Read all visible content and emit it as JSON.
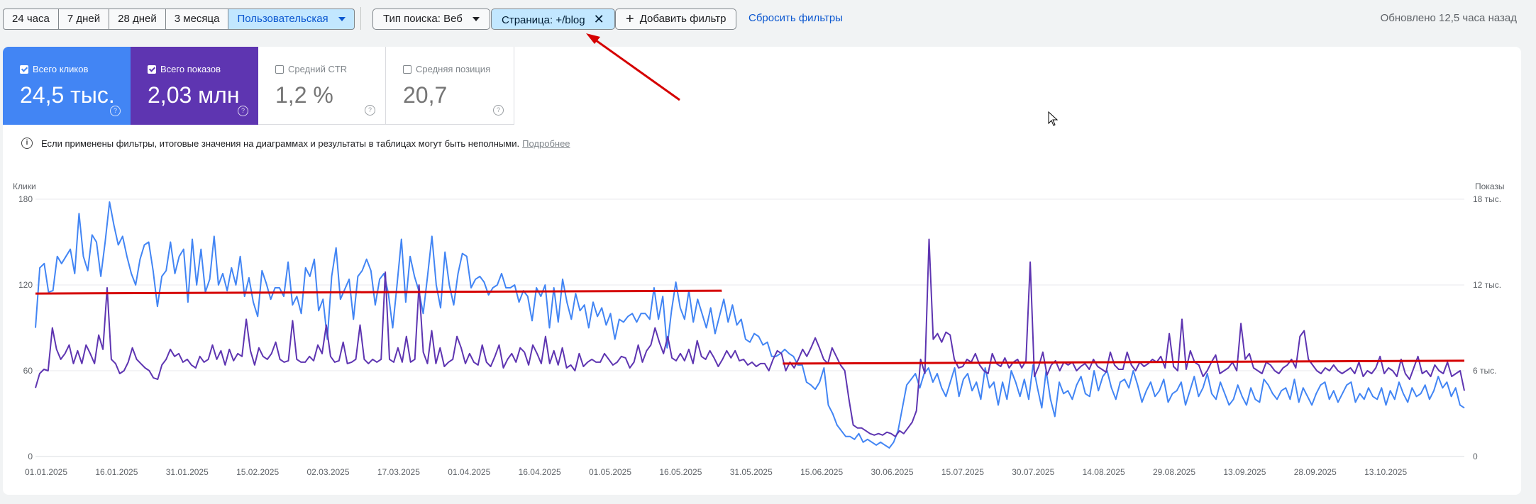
{
  "filters": {
    "ranges": [
      "24 часа",
      "7 дней",
      "28 дней",
      "3 месяца",
      "Пользовательская"
    ],
    "search_type": "Тип поиска: Веб",
    "page_filter": "Страница: +/blog",
    "add_filter": "Добавить фильтр",
    "reset": "Сбросить фильтры",
    "updated": "Обновлено 12,5 часа назад"
  },
  "metrics": [
    {
      "label": "Всего кликов",
      "value": "24,5 тыс.",
      "checked": true
    },
    {
      "label": "Всего показов",
      "value": "2,03 млн",
      "checked": true
    },
    {
      "label": "Средний CTR",
      "value": "1,2 %",
      "checked": false
    },
    {
      "label": "Средняя позиция",
      "value": "20,7",
      "checked": false
    }
  ],
  "notice": {
    "text": "Если применены фильтры, итоговые значения на диаграммах и результаты в таблицах могут быть неполными.",
    "link": "Подробнее"
  },
  "icons": {
    "info": "info-icon",
    "help": "help-icon",
    "close": "close-icon",
    "add": "plus-icon",
    "dropdown": "chevron-down-icon",
    "cursor": "mouse-cursor-icon"
  },
  "colors": {
    "clicks": "#4285f4",
    "impressions": "#5e35b1",
    "annotation": "#d50000"
  },
  "chart_data": {
    "type": "line",
    "y_left_label": "Клики",
    "y_right_label": "Показы",
    "y_left_ticks": [
      "0",
      "60",
      "120",
      "180"
    ],
    "y_right_ticks": [
      "0",
      "6 тыс.",
      "12 тыс.",
      "18 тыс."
    ],
    "ylim_left": [
      0,
      180
    ],
    "ylim_right": [
      0,
      18000
    ],
    "x_ticks": [
      "01.01.2025",
      "16.01.2025",
      "31.01.2025",
      "15.02.2025",
      "02.03.2025",
      "17.03.2025",
      "01.04.2025",
      "16.04.2025",
      "01.05.2025",
      "16.05.2025",
      "31.05.2025",
      "15.06.2025",
      "30.06.2025",
      "15.07.2025",
      "30.07.2025",
      "14.08.2025",
      "29.08.2025",
      "13.09.2025",
      "28.09.2025",
      "13.10.2025"
    ],
    "x_range": [
      "2025-01-01",
      "2025-11-01"
    ],
    "series": [
      {
        "name": "Всего кликов",
        "axis": "left",
        "values": [
          90,
          132,
          135,
          115,
          116,
          140,
          135,
          140,
          145,
          128,
          170,
          140,
          130,
          155,
          150,
          126,
          150,
          178,
          162,
          148,
          154,
          140,
          128,
          120,
          138,
          148,
          150,
          130,
          105,
          126,
          130,
          150,
          128,
          140,
          145,
          108,
          152,
          120,
          145,
          115,
          124,
          154,
          120,
          128,
          116,
          132,
          120,
          140,
          112,
          125,
          108,
          98,
          130,
          121,
          110,
          118,
          118,
          112,
          136,
          106,
          112,
          100,
          132,
          126,
          138,
          102,
          110,
          82,
          126,
          146,
          110,
          117,
          124,
          96,
          126,
          130,
          138,
          130,
          106,
          124,
          128,
          114,
          90,
          120,
          152,
          108,
          140,
          126,
          116,
          100,
          126,
          154,
          120,
          104,
          143,
          120,
          106,
          128,
          142,
          140,
          118,
          124,
          126,
          122,
          113,
          118,
          120,
          128,
          118,
          118,
          120,
          108,
          116,
          112,
          95,
          118,
          112,
          120,
          90,
          118,
          94,
          124,
          108,
          96,
          114,
          102,
          106,
          90,
          108,
          98,
          104,
          92,
          100,
          82,
          96,
          94,
          98,
          100,
          94,
          100,
          100,
          96,
          118,
          96,
          112,
          76,
          102,
          122,
          104,
          96,
          116,
          94,
          110,
          100,
          90,
          104,
          86,
          98,
          110,
          94,
          106,
          92,
          96,
          82,
          80,
          86,
          84,
          78,
          80,
          70,
          70,
          72,
          75,
          72,
          70,
          64,
          64,
          52,
          50,
          47,
          52,
          62,
          36,
          30,
          22,
          18,
          14,
          14,
          12,
          16,
          10,
          12,
          10,
          8,
          10,
          8,
          6,
          10,
          18,
          34,
          50,
          54,
          58,
          48,
          58,
          62,
          52,
          58,
          48,
          42,
          52,
          62,
          42,
          54,
          58,
          46,
          52,
          40,
          62,
          48,
          52,
          36,
          52,
          40,
          60,
          52,
          42,
          54,
          40,
          64,
          48,
          34,
          60,
          40,
          28,
          52,
          44,
          46,
          40,
          50,
          56,
          44,
          42,
          60,
          46,
          56,
          60,
          48,
          40,
          52,
          54,
          48,
          60,
          50,
          38,
          46,
          52,
          42,
          46,
          54,
          38,
          44,
          46,
          52,
          36,
          46,
          56,
          42,
          48,
          58,
          44,
          40,
          52,
          44,
          36,
          40,
          50,
          42,
          36,
          48,
          40,
          38,
          54,
          50,
          44,
          40,
          46,
          48,
          40,
          54,
          38,
          48,
          42,
          36,
          44,
          50,
          52,
          40,
          46,
          38,
          44,
          50,
          52,
          38,
          44,
          40,
          48,
          42,
          40,
          48,
          36,
          46,
          40,
          52,
          44,
          38,
          48,
          42,
          44,
          50,
          40,
          46,
          56,
          48,
          52,
          42,
          48,
          36,
          34
        ]
      },
      {
        "name": "Всего показов",
        "axis": "right",
        "values": [
          4800,
          5800,
          6100,
          6000,
          9000,
          7500,
          6800,
          7200,
          7800,
          6500,
          7400,
          6500,
          7800,
          7200,
          6500,
          8500,
          7500,
          11800,
          6800,
          6500,
          5800,
          6000,
          6600,
          7600,
          6800,
          6500,
          6200,
          6000,
          5500,
          5400,
          6400,
          6800,
          7500,
          7000,
          7200,
          6600,
          6800,
          6400,
          6200,
          7000,
          6600,
          6800,
          7800,
          6800,
          7400,
          6400,
          7500,
          6700,
          7200,
          7000,
          9600,
          7400,
          6400,
          7600,
          7000,
          6800,
          7200,
          8000,
          6800,
          6600,
          6700,
          9500,
          6800,
          6600,
          6600,
          7000,
          6700,
          7800,
          7200,
          9200,
          7000,
          6600,
          6700,
          8000,
          6500,
          6600,
          6800,
          9200,
          6800,
          6500,
          6800,
          6600,
          6800,
          12900,
          6800,
          6600,
          7600,
          6600,
          8400,
          6600,
          6800,
          12000,
          7300,
          6500,
          8800,
          6500,
          7600,
          6300,
          6600,
          6800,
          8400,
          7600,
          6500,
          7200,
          6600,
          6400,
          7800,
          6600,
          6300,
          7000,
          7800,
          6200,
          6800,
          7200,
          6600,
          7600,
          7300,
          6400,
          7800,
          7200,
          6500,
          8400,
          6500,
          7400,
          6400,
          7600,
          6200,
          6400,
          6000,
          7200,
          6300,
          6600,
          6800,
          6600,
          6600,
          7200,
          6800,
          6400,
          6600,
          7000,
          6900,
          6200,
          6600,
          7800,
          6600,
          7400,
          7800,
          9000,
          8000,
          7200,
          8400,
          6900,
          6700,
          7200,
          6700,
          7500,
          6500,
          8100,
          7000,
          6800,
          7400,
          6900,
          6300,
          6800,
          7400,
          6900,
          7400,
          6700,
          6800,
          6400,
          6600,
          6300,
          6500,
          6500,
          6000,
          6800,
          7400,
          7200,
          6000,
          6600,
          6200,
          6800,
          7500,
          7000,
          7600,
          8300,
          7600,
          6800,
          6500,
          7600,
          7000,
          6400,
          6000,
          4000,
          2200,
          2000,
          2000,
          1800,
          1600,
          1500,
          1600,
          1500,
          1700,
          1600,
          1400,
          1800,
          1600,
          2000,
          2400,
          3200,
          6800,
          5800,
          15200,
          8200,
          8600,
          8000,
          8700,
          8500,
          6800,
          6200,
          6300,
          6800,
          6600,
          7200,
          6400,
          6000,
          5800,
          7200,
          6500,
          6300,
          6900,
          6200,
          6600,
          6800,
          6200,
          6700,
          13600,
          5600,
          6300,
          7300,
          5700,
          6400,
          6700,
          6000,
          6600,
          6400,
          6600,
          6000,
          6300,
          6500,
          6100,
          6800,
          6300,
          6100,
          5900,
          7300,
          6400,
          6100,
          6100,
          7300,
          6400,
          6000,
          6600,
          6300,
          6500,
          6800,
          6600,
          7000,
          6200,
          8600,
          6300,
          6000,
          9600,
          6100,
          7400,
          6600,
          6400,
          5600,
          6000,
          6600,
          7100,
          5800,
          6000,
          6200,
          6600,
          6000,
          9300,
          6800,
          7200,
          6200,
          6000,
          5800,
          6600,
          6400,
          6000,
          5800,
          6200,
          6400,
          6800,
          6200,
          8400,
          8800,
          6800,
          6400,
          6000,
          5800,
          6200,
          6000,
          6400,
          6000,
          5800,
          6000,
          6200,
          5800,
          6600,
          5600,
          6000,
          5800,
          6200,
          7000,
          5800,
          6200,
          6000,
          5600,
          6800,
          5800,
          5400,
          6200,
          7000,
          5800,
          6000,
          5600,
          6400,
          6000,
          5800,
          6600,
          5600,
          5800,
          6000,
          4600
        ]
      }
    ],
    "annotations": [
      {
        "type": "trend-line",
        "axis": "left",
        "from": [
          "2025-01-01",
          114
        ],
        "to": [
          "2025-05-27",
          116
        ]
      },
      {
        "type": "trend-line",
        "axis": "left",
        "from": [
          "2025-06-09",
          65
        ],
        "to": [
          "2025-11-01",
          67
        ]
      },
      {
        "type": "arrow",
        "points_to": "page_filter"
      }
    ],
    "grid": true,
    "legend": "none"
  }
}
